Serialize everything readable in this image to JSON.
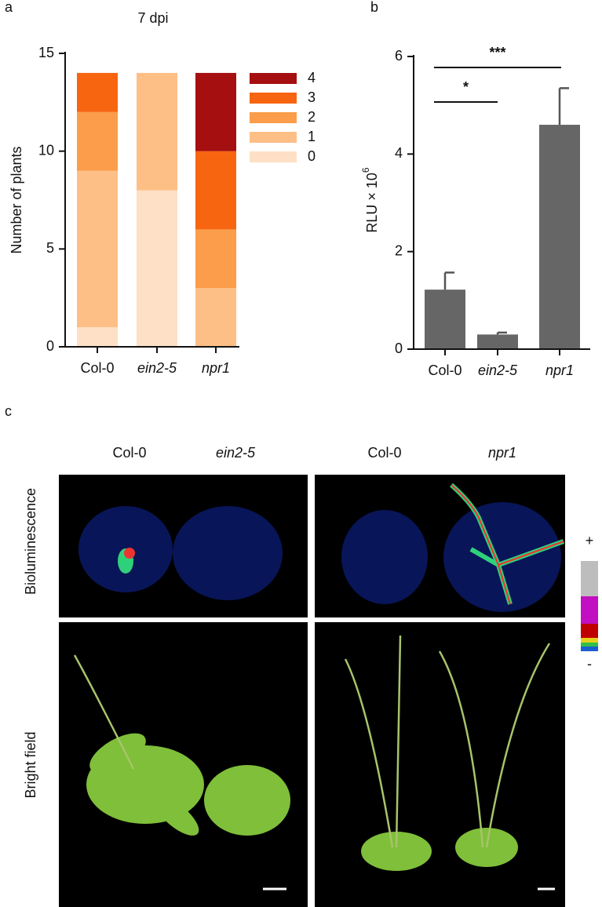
{
  "panel_labels": [
    "a",
    "b",
    "c"
  ],
  "chart_data": [
    {
      "type": "stacked_bar",
      "title": "7 dpi",
      "y_label": "Number of plants",
      "categories": [
        "Col-0",
        "ein2-5",
        "npr1"
      ],
      "series": [
        {
          "name": "0",
          "color": "#fde0c5",
          "values": [
            1,
            8,
            0
          ]
        },
        {
          "name": "1",
          "color": "#fdbf85",
          "values": [
            8,
            6,
            3
          ]
        },
        {
          "name": "2",
          "color": "#fb9d4a",
          "values": [
            3,
            0,
            3
          ]
        },
        {
          "name": "3",
          "color": "#f76511",
          "values": [
            2,
            0,
            4
          ]
        },
        {
          "name": "4",
          "color": "#a50f0f",
          "values": [
            0,
            0,
            4
          ]
        }
      ],
      "ylim": [
        0,
        15
      ],
      "yticks": [
        0,
        5,
        10,
        15
      ]
    },
    {
      "type": "bar",
      "y_label": "RLU × 10",
      "y_label_exponent": "6",
      "categories": [
        "Col-0",
        "ein2-5",
        "npr1"
      ],
      "values": [
        1.22,
        0.3,
        4.6
      ],
      "errors": [
        0.35,
        0.04,
        0.75
      ],
      "color": "#666666",
      "ylim": [
        0,
        6
      ],
      "yticks": [
        0,
        2,
        4,
        6
      ],
      "annotations": [
        "*",
        "***"
      ]
    }
  ],
  "panel_c": {
    "column_labels": [
      "Col-0",
      "ein2-5",
      "Col-0",
      "npr1"
    ],
    "row_labels": [
      "Bioluminescence",
      "Bright field"
    ],
    "scale_high": "+",
    "scale_low": "-"
  }
}
